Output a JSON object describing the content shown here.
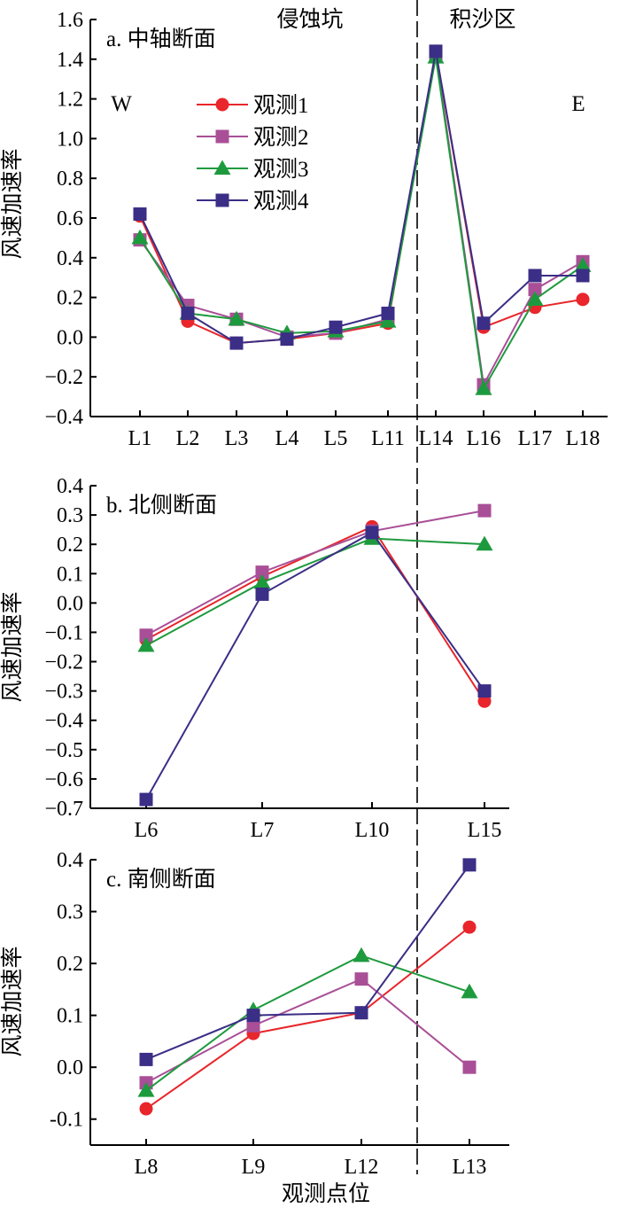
{
  "colors": {
    "axis": "#000000",
    "series": [
      "#e8262b",
      "#a94f97",
      "#1e9a3e",
      "#3b2e86"
    ]
  },
  "series_names": [
    "观测1",
    "观测2",
    "观测3",
    "观测4"
  ],
  "shared_xlabel": "观测点位",
  "region_labels": {
    "left": "侵蚀坑",
    "right": "积沙区"
  },
  "side_labels": {
    "west": "W",
    "east": "E"
  },
  "chart_data": [
    {
      "type": "line",
      "title": "a. 中轴断面",
      "ylabel": "风速加速率",
      "xlabel": "",
      "categories": [
        "L1",
        "L2",
        "L3",
        "L4",
        "L5",
        "L11",
        "L14",
        "L16",
        "L17",
        "L18"
      ],
      "ylim": [
        -0.4,
        1.6
      ],
      "yticks": [
        "−0.4",
        "−0.2",
        "0.0",
        "0.2",
        "0.4",
        "0.6",
        "0.8",
        "1.0",
        "1.2",
        "1.4",
        "1.6"
      ],
      "legend": "upper-left",
      "series": [
        {
          "name": "观测1",
          "marker": "circle",
          "values": [
            0.61,
            0.08,
            -0.03,
            -0.01,
            0.02,
            0.07,
            1.44,
            0.05,
            0.15,
            0.19
          ]
        },
        {
          "name": "观测2",
          "marker": "square",
          "values": [
            0.49,
            0.16,
            0.09,
            0.0,
            0.02,
            0.09,
            1.43,
            -0.24,
            0.24,
            0.38
          ]
        },
        {
          "name": "观测3",
          "marker": "triangle",
          "values": [
            0.5,
            0.12,
            0.09,
            0.02,
            0.03,
            0.08,
            1.41,
            -0.26,
            0.19,
            0.36
          ]
        },
        {
          "name": "观测4",
          "marker": "square",
          "values": [
            0.62,
            0.12,
            -0.03,
            -0.01,
            0.05,
            0.12,
            1.44,
            0.07,
            0.31,
            0.31
          ]
        }
      ]
    },
    {
      "type": "line",
      "title": "b. 北侧断面",
      "ylabel": "风速加速率",
      "xlabel": "",
      "categories": [
        "L6",
        "L7",
        "L10",
        "L15"
      ],
      "ylim": [
        -0.7,
        0.4
      ],
      "yticks": [
        "−0.7",
        "−0.6",
        "−0.5",
        "−0.4",
        "−0.3",
        "−0.2",
        "−0.1",
        "0.0",
        "0.1",
        "0.2",
        "0.3",
        "0.4"
      ],
      "series": [
        {
          "name": "观测1",
          "marker": "circle",
          "values": [
            -0.125,
            0.09,
            0.26,
            -0.335
          ]
        },
        {
          "name": "观测2",
          "marker": "square",
          "values": [
            -0.11,
            0.105,
            0.245,
            0.315
          ]
        },
        {
          "name": "观测3",
          "marker": "triangle",
          "values": [
            -0.145,
            0.07,
            0.22,
            0.2
          ]
        },
        {
          "name": "观测4",
          "marker": "square",
          "values": [
            -0.67,
            0.03,
            0.24,
            -0.3
          ]
        }
      ]
    },
    {
      "type": "line",
      "title": "c. 南侧断面",
      "ylabel": "风速加速率",
      "xlabel": "观测点位",
      "categories": [
        "L8",
        "L9",
        "L12",
        "L13"
      ],
      "ylim": [
        -0.15,
        0.4
      ],
      "yticks": [
        "-0.1",
        "0.0",
        "0.1",
        "0.2",
        "0.3",
        "0.4"
      ],
      "series": [
        {
          "name": "观测1",
          "marker": "circle",
          "values": [
            -0.08,
            0.065,
            0.105,
            0.27
          ]
        },
        {
          "name": "观测2",
          "marker": "square",
          "values": [
            -0.03,
            0.08,
            0.17,
            0.0
          ]
        },
        {
          "name": "观测3",
          "marker": "triangle",
          "values": [
            -0.045,
            0.11,
            0.215,
            0.145
          ]
        },
        {
          "name": "观测4",
          "marker": "square",
          "values": [
            0.015,
            0.1,
            0.105,
            0.39
          ]
        }
      ]
    }
  ]
}
